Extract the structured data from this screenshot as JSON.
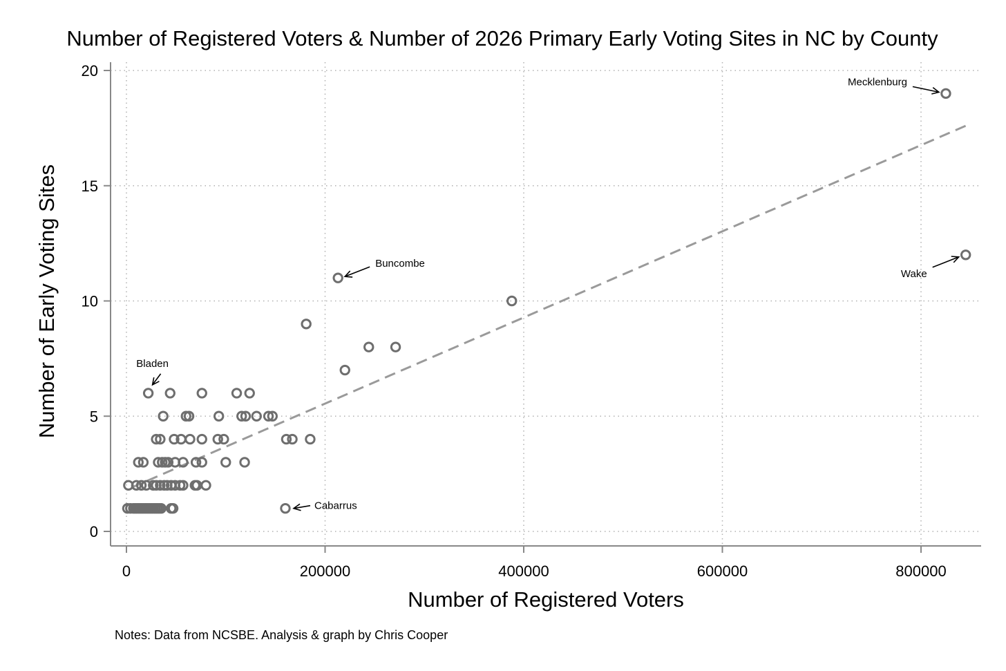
{
  "chart_data": {
    "type": "scatter",
    "title": "Number of Registered Voters & Number of 2026 Primary Early Voting Sites in NC by County",
    "xlabel": "Number of Registered Voters",
    "ylabel": "Number of Early Voting Sites",
    "note": "Notes: Data from NCSBE. Analysis & graph by Chris Cooper",
    "xlim": [
      -20000,
      860000
    ],
    "ylim": [
      -0.7,
      20
    ],
    "xticks": [
      0,
      200000,
      400000,
      600000,
      800000
    ],
    "xtick_labels": [
      "0",
      "200000",
      "400000",
      "600000",
      "800000"
    ],
    "yticks": [
      0,
      5,
      10,
      15,
      20
    ],
    "ytick_labels": [
      "0",
      "5",
      "10",
      "15",
      "20"
    ],
    "grid": true,
    "colors": {
      "marker": "#6e6e6e",
      "fit_line": "#9a9a9a",
      "grid": "#b0b0b0",
      "axis": "#888888"
    },
    "fit_line": {
      "x": [
        5000,
        845000
      ],
      "y": [
        1.9,
        17.6
      ],
      "style": "dashed"
    },
    "points": [
      {
        "x": 825000,
        "y": 19
      },
      {
        "x": 845000,
        "y": 12
      },
      {
        "x": 213000,
        "y": 11
      },
      {
        "x": 388000,
        "y": 10
      },
      {
        "x": 181000,
        "y": 9
      },
      {
        "x": 244000,
        "y": 8
      },
      {
        "x": 271000,
        "y": 8
      },
      {
        "x": 220000,
        "y": 7
      },
      {
        "x": 22000,
        "y": 6
      },
      {
        "x": 44000,
        "y": 6
      },
      {
        "x": 76000,
        "y": 6
      },
      {
        "x": 111000,
        "y": 6
      },
      {
        "x": 124000,
        "y": 6
      },
      {
        "x": 37000,
        "y": 5
      },
      {
        "x": 60000,
        "y": 5
      },
      {
        "x": 63000,
        "y": 5
      },
      {
        "x": 93000,
        "y": 5
      },
      {
        "x": 116000,
        "y": 5
      },
      {
        "x": 120000,
        "y": 5
      },
      {
        "x": 131000,
        "y": 5
      },
      {
        "x": 143000,
        "y": 5
      },
      {
        "x": 147000,
        "y": 5
      },
      {
        "x": 30000,
        "y": 4
      },
      {
        "x": 34000,
        "y": 4
      },
      {
        "x": 48000,
        "y": 4
      },
      {
        "x": 55000,
        "y": 4
      },
      {
        "x": 64000,
        "y": 4
      },
      {
        "x": 76000,
        "y": 4
      },
      {
        "x": 92000,
        "y": 4
      },
      {
        "x": 98000,
        "y": 4
      },
      {
        "x": 161000,
        "y": 4
      },
      {
        "x": 167000,
        "y": 4
      },
      {
        "x": 185000,
        "y": 4
      },
      {
        "x": 12000,
        "y": 3
      },
      {
        "x": 17000,
        "y": 3
      },
      {
        "x": 32000,
        "y": 3
      },
      {
        "x": 36000,
        "y": 3
      },
      {
        "x": 39000,
        "y": 3
      },
      {
        "x": 42000,
        "y": 3
      },
      {
        "x": 49000,
        "y": 3
      },
      {
        "x": 57000,
        "y": 3
      },
      {
        "x": 70000,
        "y": 3
      },
      {
        "x": 76000,
        "y": 3
      },
      {
        "x": 100000,
        "y": 3
      },
      {
        "x": 119000,
        "y": 3
      },
      {
        "x": 2000,
        "y": 2
      },
      {
        "x": 10000,
        "y": 2
      },
      {
        "x": 15000,
        "y": 2
      },
      {
        "x": 20000,
        "y": 2
      },
      {
        "x": 27000,
        "y": 2
      },
      {
        "x": 30000,
        "y": 2
      },
      {
        "x": 34000,
        "y": 2
      },
      {
        "x": 38000,
        "y": 2
      },
      {
        "x": 41000,
        "y": 2
      },
      {
        "x": 45000,
        "y": 2
      },
      {
        "x": 49000,
        "y": 2
      },
      {
        "x": 54000,
        "y": 2
      },
      {
        "x": 57000,
        "y": 2
      },
      {
        "x": 69000,
        "y": 2
      },
      {
        "x": 71000,
        "y": 2
      },
      {
        "x": 80000,
        "y": 2
      },
      {
        "x": 1000,
        "y": 1
      },
      {
        "x": 4000,
        "y": 1
      },
      {
        "x": 7000,
        "y": 1
      },
      {
        "x": 9000,
        "y": 1
      },
      {
        "x": 11000,
        "y": 1
      },
      {
        "x": 13000,
        "y": 1
      },
      {
        "x": 15000,
        "y": 1
      },
      {
        "x": 17000,
        "y": 1
      },
      {
        "x": 19000,
        "y": 1
      },
      {
        "x": 21000,
        "y": 1
      },
      {
        "x": 23000,
        "y": 1
      },
      {
        "x": 25000,
        "y": 1
      },
      {
        "x": 27000,
        "y": 1
      },
      {
        "x": 29000,
        "y": 1
      },
      {
        "x": 31000,
        "y": 1
      },
      {
        "x": 33000,
        "y": 1
      },
      {
        "x": 35000,
        "y": 1
      },
      {
        "x": 45000,
        "y": 1
      },
      {
        "x": 47000,
        "y": 1
      },
      {
        "x": 160000,
        "y": 1
      }
    ],
    "annotations": [
      {
        "label": "Mecklenburg",
        "x": 825000,
        "y": 19
      },
      {
        "label": "Wake",
        "x": 845000,
        "y": 12
      },
      {
        "label": "Buncombe",
        "x": 213000,
        "y": 11
      },
      {
        "label": "Bladen",
        "x": 22000,
        "y": 6
      },
      {
        "label": "Cabarrus",
        "x": 160000,
        "y": 1
      }
    ]
  }
}
